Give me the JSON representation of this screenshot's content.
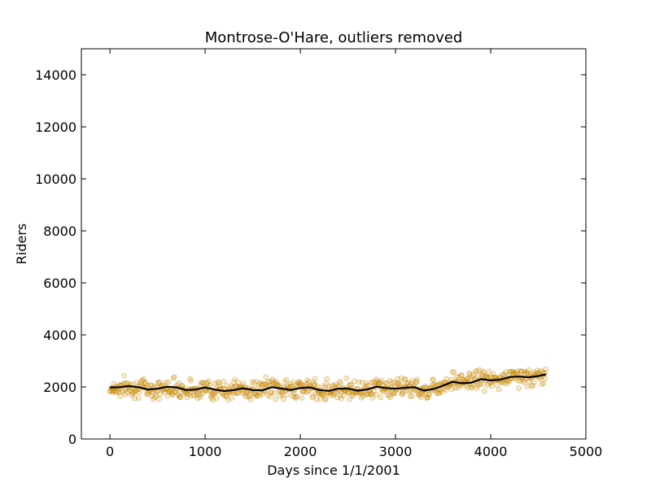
{
  "chart_data": {
    "type": "scatter",
    "title": "Montrose-O'Hare, outliers removed",
    "xlabel": "Days since 1/1/2001",
    "ylabel": "Riders",
    "xlim": [
      -300,
      5000
    ],
    "ylim": [
      0,
      15000
    ],
    "xticks": [
      0,
      1000,
      2000,
      3000,
      4000,
      5000
    ],
    "yticks": [
      0,
      2000,
      4000,
      6000,
      8000,
      10000,
      12000,
      14000
    ],
    "xtick_labels": [
      "0",
      "1000",
      "2000",
      "3000",
      "4000",
      "5000"
    ],
    "ytick_labels": [
      "0",
      "2000",
      "4000",
      "6000",
      "8000",
      "10000",
      "12000",
      "14000"
    ],
    "grid": false,
    "legend": "none",
    "colors": {
      "points": "#e69f00",
      "point_edge": "#a06c00",
      "trend": "#000000"
    },
    "series": [
      {
        "kind": "scatter",
        "x_range": [
          0,
          4580
        ],
        "baseline": [
          [
            0,
            1950
          ],
          [
            250,
            2000
          ],
          [
            500,
            1900
          ],
          [
            700,
            2000
          ],
          [
            800,
            1870
          ],
          [
            1000,
            1950
          ],
          [
            1150,
            1850
          ],
          [
            1350,
            1930
          ],
          [
            1500,
            1850
          ],
          [
            1700,
            2020
          ],
          [
            1800,
            1870
          ],
          [
            2000,
            2000
          ],
          [
            2200,
            1870
          ],
          [
            2450,
            1950
          ],
          [
            2600,
            1870
          ],
          [
            2800,
            2000
          ],
          [
            2950,
            1930
          ],
          [
            3150,
            2020
          ],
          [
            3300,
            1850
          ],
          [
            3500,
            2100
          ],
          [
            3600,
            2250
          ],
          [
            3700,
            2150
          ],
          [
            3900,
            2350
          ],
          [
            4050,
            2200
          ],
          [
            4250,
            2450
          ],
          [
            4400,
            2350
          ],
          [
            4580,
            2450
          ]
        ],
        "spread": 180
      },
      {
        "kind": "line",
        "points": [
          [
            0,
            1980
          ],
          [
            100,
            1990
          ],
          [
            200,
            2030
          ],
          [
            300,
            1990
          ],
          [
            400,
            1900
          ],
          [
            500,
            1930
          ],
          [
            600,
            2010
          ],
          [
            700,
            1980
          ],
          [
            800,
            1880
          ],
          [
            900,
            1900
          ],
          [
            1000,
            1980
          ],
          [
            1100,
            1900
          ],
          [
            1200,
            1840
          ],
          [
            1300,
            1880
          ],
          [
            1400,
            1950
          ],
          [
            1500,
            1880
          ],
          [
            1600,
            1870
          ],
          [
            1700,
            1990
          ],
          [
            1800,
            1940
          ],
          [
            1900,
            1880
          ],
          [
            2000,
            1960
          ],
          [
            2100,
            1980
          ],
          [
            2200,
            1880
          ],
          [
            2300,
            1850
          ],
          [
            2400,
            1930
          ],
          [
            2500,
            1940
          ],
          [
            2600,
            1860
          ],
          [
            2700,
            1900
          ],
          [
            2800,
            2010
          ],
          [
            2900,
            1960
          ],
          [
            3000,
            1930
          ],
          [
            3100,
            1970
          ],
          [
            3200,
            1990
          ],
          [
            3300,
            1860
          ],
          [
            3400,
            1920
          ],
          [
            3500,
            2050
          ],
          [
            3600,
            2200
          ],
          [
            3700,
            2140
          ],
          [
            3800,
            2170
          ],
          [
            3900,
            2300
          ],
          [
            4000,
            2250
          ],
          [
            4100,
            2280
          ],
          [
            4200,
            2380
          ],
          [
            4300,
            2400
          ],
          [
            4400,
            2370
          ],
          [
            4500,
            2420
          ],
          [
            4580,
            2480
          ]
        ]
      }
    ]
  }
}
